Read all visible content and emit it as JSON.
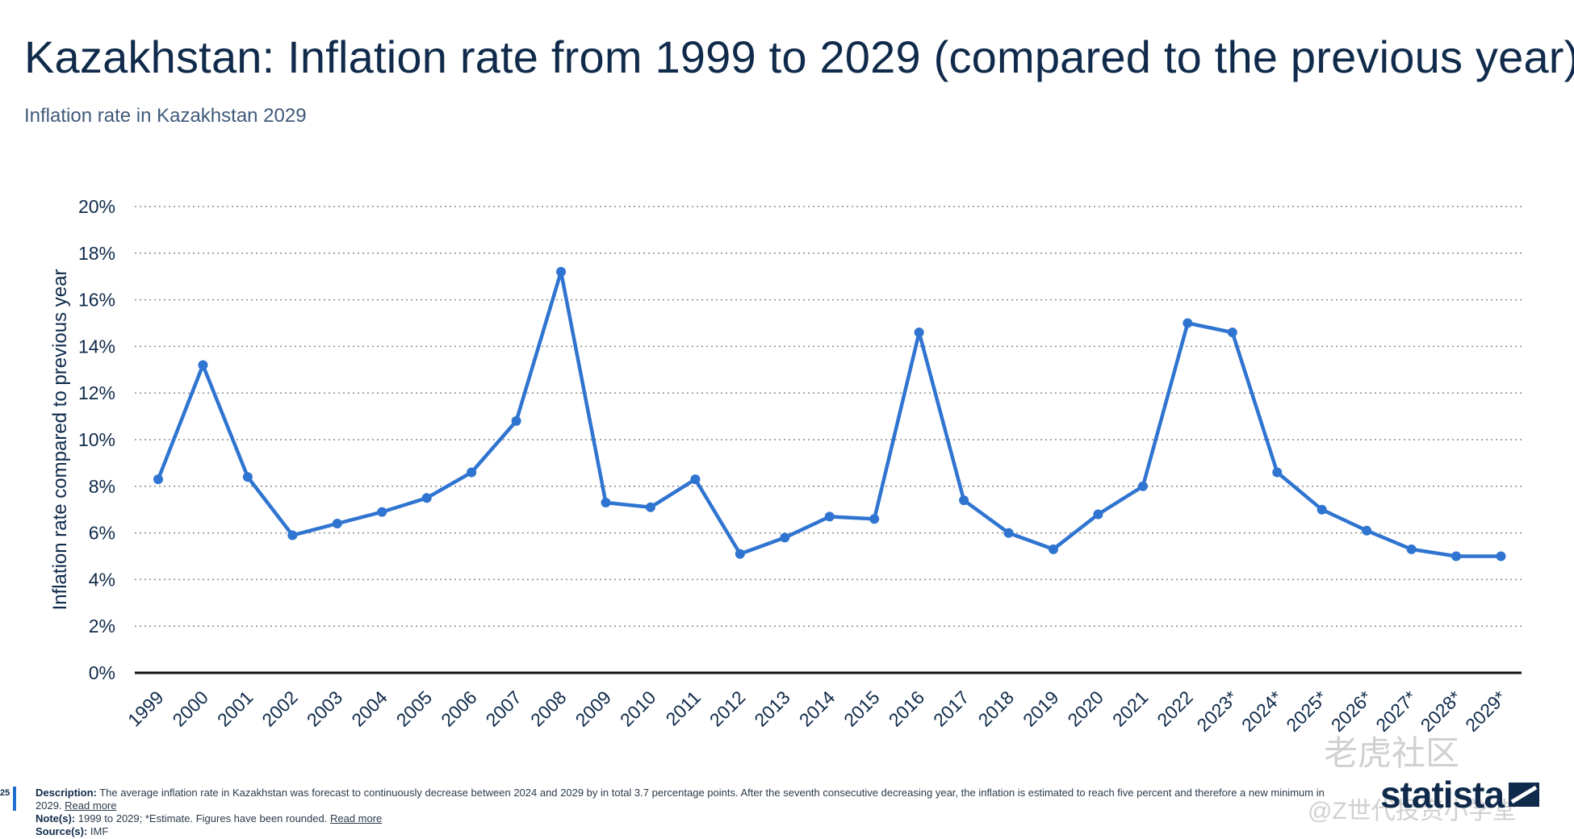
{
  "header": {
    "title": "Kazakhstan: Inflation rate from 1999 to 2029 (compared to the previous year)",
    "subtitle": "Inflation rate in Kazakhstan 2029"
  },
  "footer": {
    "page_number": "25",
    "description_label": "Description:",
    "description_text": "The average inflation rate in Kazakhstan was forecast to continuously decrease between 2024 and 2029 by in total 3.7 percentage points. After the seventh consecutive decreasing year, the inflation is estimated to reach five percent and therefore a new minimum in 2029.",
    "read_more": "Read more",
    "notes_label": "Note(s):",
    "notes_text": "1999 to 2029; *Estimate. Figures have been rounded.",
    "source_label": "Source(s):",
    "source_text": "IMF"
  },
  "logo": {
    "text": "statista"
  },
  "watermark": {
    "line1": "老虎社区",
    "line2": "@Z世代投资小学堂"
  },
  "colors": {
    "line": "#2f74d0",
    "axis": "#111111",
    "grid": "#8a8a8a",
    "text": "#0f2a4a"
  },
  "chart_data": {
    "type": "line",
    "title": "Kazakhstan: Inflation rate from 1999 to 2029 (compared to the previous year)",
    "xlabel": "",
    "ylabel": "Inflation rate compared to previous year",
    "ylim": [
      0,
      20
    ],
    "yticks": [
      "0%",
      "2%",
      "4%",
      "6%",
      "8%",
      "10%",
      "12%",
      "14%",
      "16%",
      "18%",
      "20%"
    ],
    "grid": true,
    "categories": [
      "1999",
      "2000",
      "2001",
      "2002",
      "2003",
      "2004",
      "2005",
      "2006",
      "2007",
      "2008",
      "2009",
      "2010",
      "2011",
      "2012",
      "2013",
      "2014",
      "2015",
      "2016",
      "2017",
      "2018",
      "2019",
      "2020",
      "2021",
      "2022",
      "2023*",
      "2024*",
      "2025*",
      "2026*",
      "2027*",
      "2028*",
      "2029*"
    ],
    "series": [
      {
        "values": [
          8.3,
          13.2,
          8.4,
          5.9,
          6.4,
          6.9,
          7.5,
          8.6,
          10.8,
          17.2,
          7.3,
          7.1,
          8.3,
          5.1,
          5.8,
          6.7,
          6.6,
          14.6,
          7.4,
          6.0,
          5.3,
          6.8,
          8.0,
          15.0,
          14.6,
          8.6,
          7.0,
          6.1,
          5.3,
          5.0,
          5.0
        ]
      }
    ]
  }
}
